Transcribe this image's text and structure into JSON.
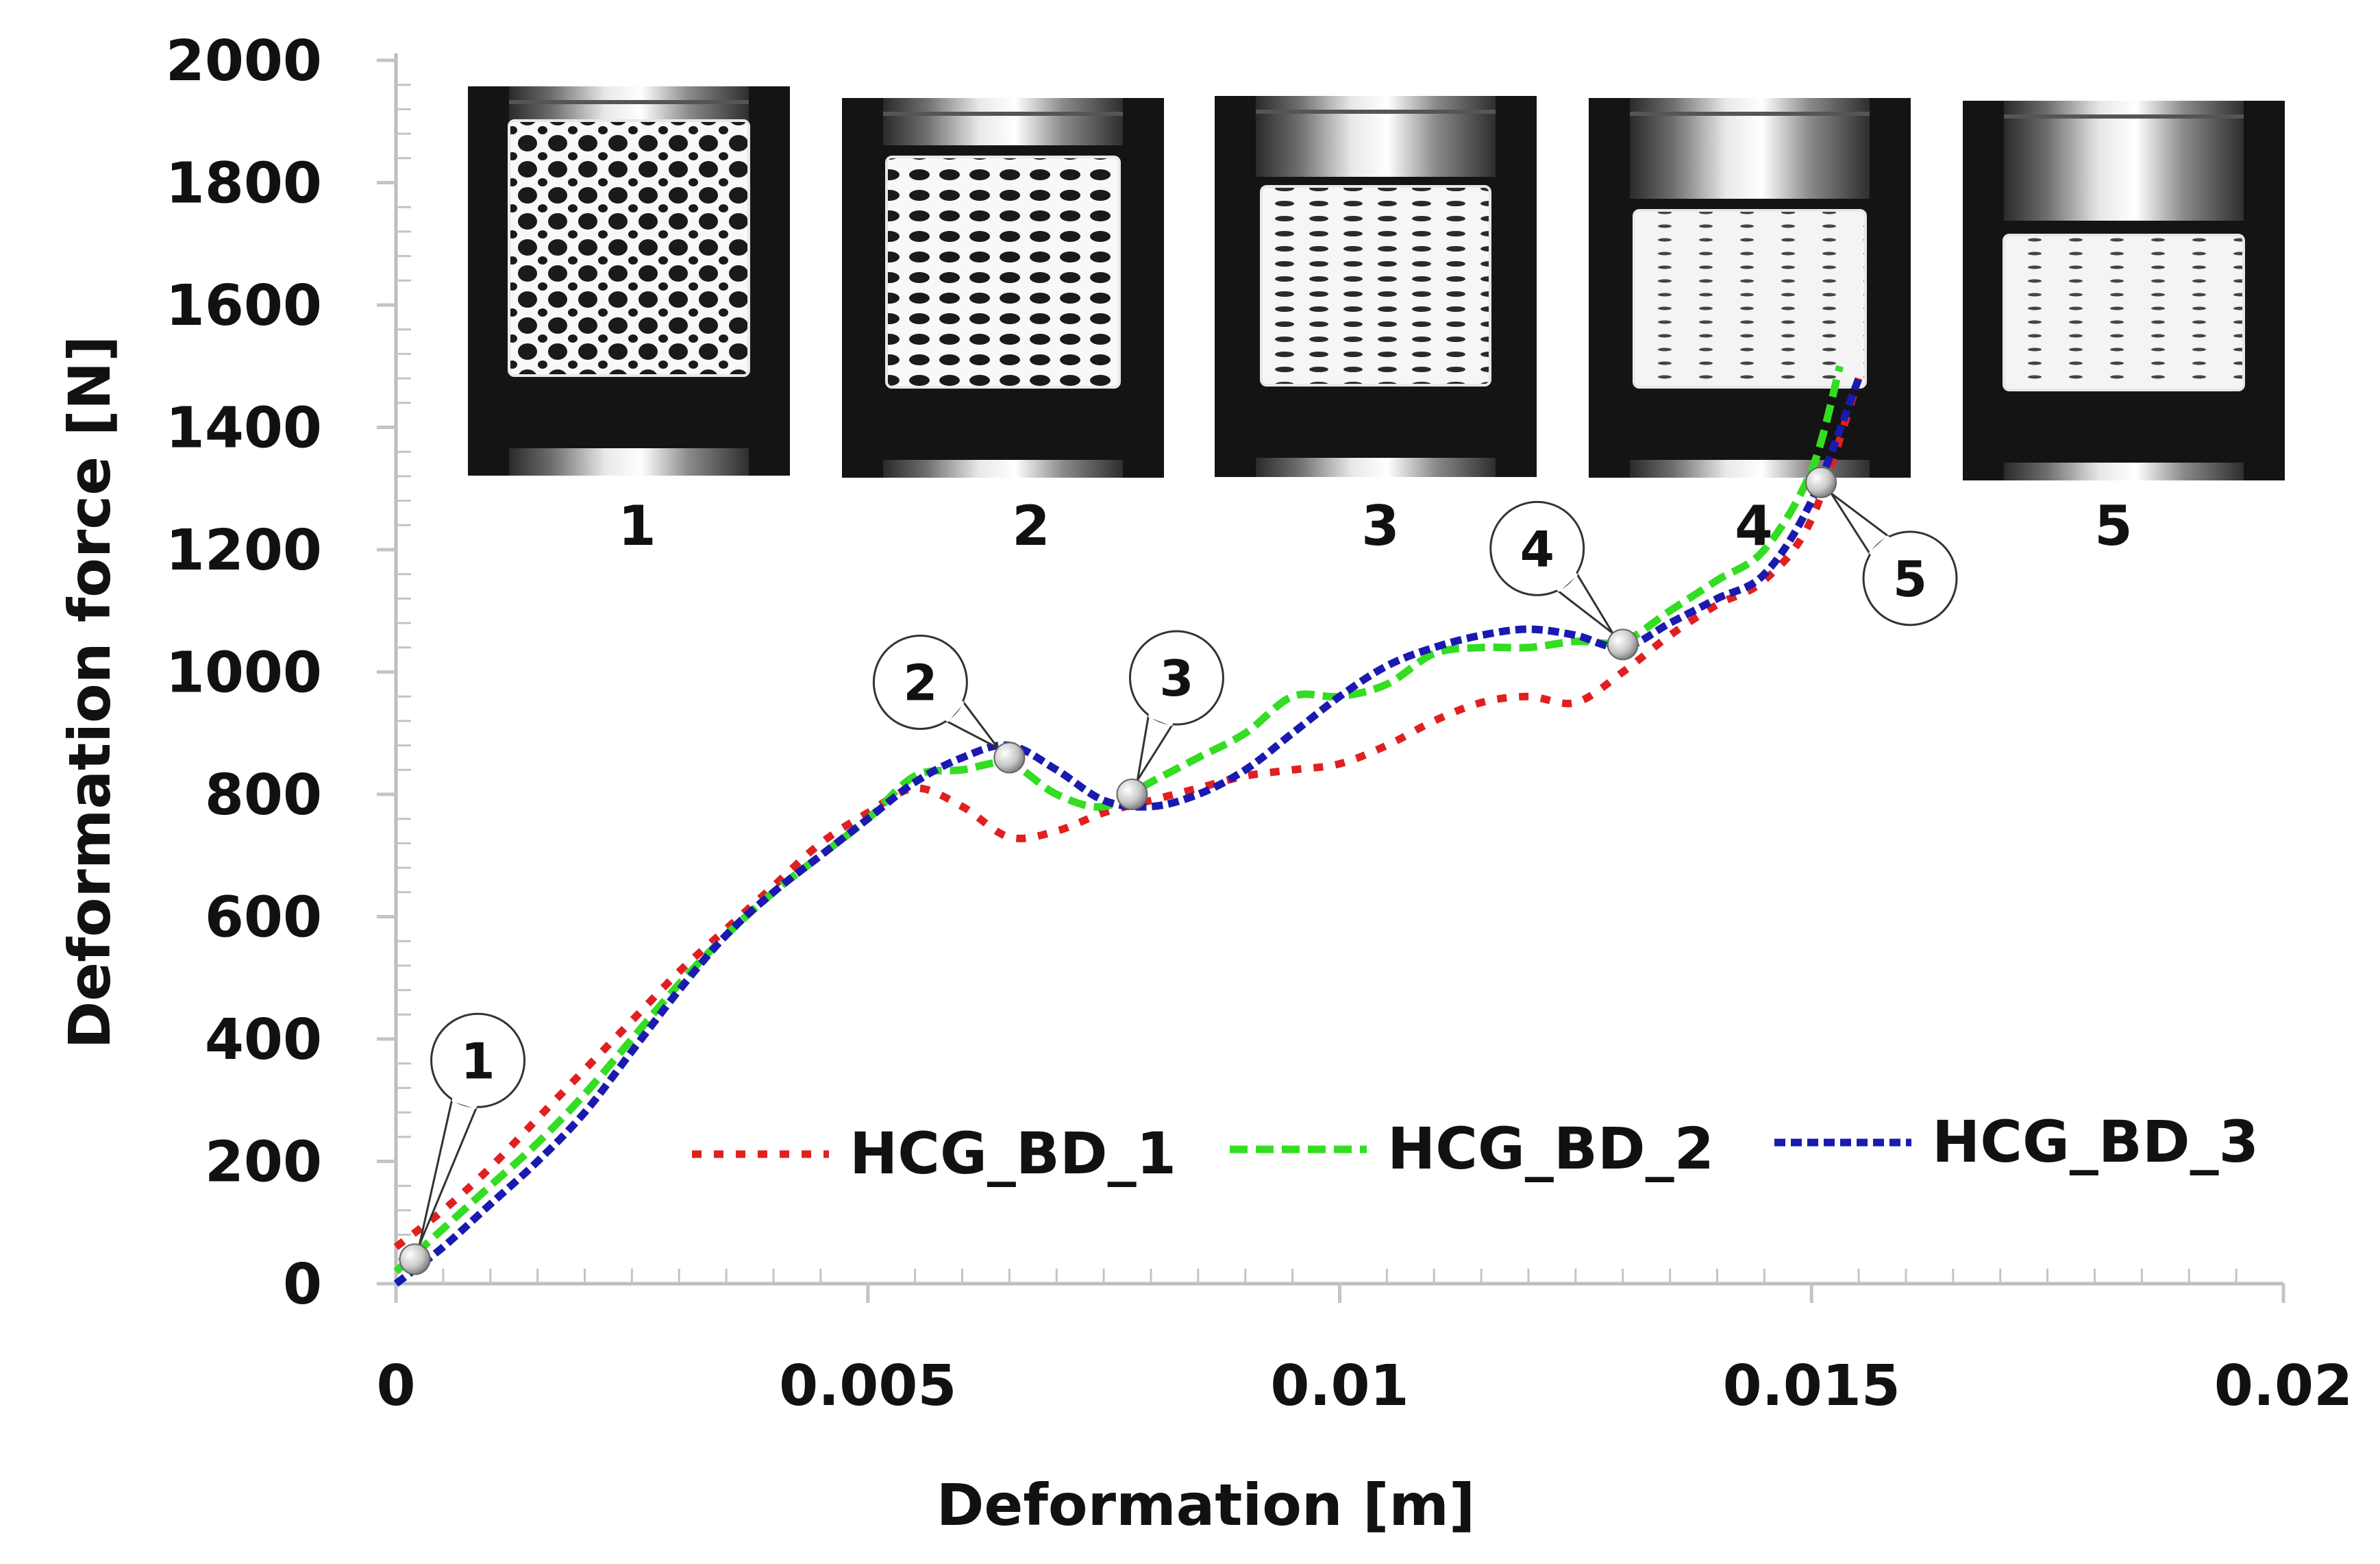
{
  "chart_data": {
    "type": "line",
    "xlabel": "Deformation [m]",
    "ylabel": "Deformation force [N]",
    "xlim": [
      0,
      0.02
    ],
    "ylim": [
      0,
      2000
    ],
    "x_ticks": [
      "0",
      "0.005",
      "0.01",
      "0.015",
      "0.02"
    ],
    "y_ticks": [
      "0",
      "200",
      "400",
      "600",
      "800",
      "1000",
      "1200",
      "1400",
      "1600",
      "1800",
      "2000"
    ],
    "grid": false,
    "legend_position": "center-right",
    "series": [
      {
        "name": "HCG_BD_1",
        "color": "#e02020",
        "x": [
          0,
          0.0005,
          0.001,
          0.0015,
          0.002,
          0.0025,
          0.003,
          0.0035,
          0.004,
          0.0045,
          0.005,
          0.0055,
          0.006,
          0.0065,
          0.007,
          0.0075,
          0.008,
          0.0085,
          0.009,
          0.0095,
          0.01,
          0.0105,
          0.011,
          0.0115,
          0.012,
          0.0125,
          0.013,
          0.0135,
          0.014,
          0.0145,
          0.015,
          0.0155
        ],
        "values": [
          60,
          120,
          190,
          270,
          350,
          430,
          510,
          580,
          650,
          720,
          770,
          810,
          780,
          730,
          740,
          770,
          790,
          810,
          830,
          840,
          850,
          880,
          920,
          950,
          960,
          950,
          1000,
          1060,
          1110,
          1150,
          1250,
          1480
        ]
      },
      {
        "name": "HCG_BD_2",
        "color": "#33dd22",
        "x": [
          0,
          0.0005,
          0.001,
          0.0015,
          0.002,
          0.0025,
          0.003,
          0.0035,
          0.004,
          0.0045,
          0.005,
          0.0055,
          0.006,
          0.0065,
          0.007,
          0.0075,
          0.008,
          0.0085,
          0.009,
          0.0095,
          0.01,
          0.0105,
          0.011,
          0.0115,
          0.012,
          0.0125,
          0.013,
          0.0135,
          0.014,
          0.0145,
          0.015,
          0.0153
        ],
        "values": [
          20,
          90,
          160,
          230,
          310,
          400,
          490,
          570,
          640,
          700,
          760,
          830,
          840,
          850,
          800,
          780,
          820,
          860,
          900,
          960,
          960,
          980,
          1030,
          1040,
          1040,
          1050,
          1050,
          1100,
          1150,
          1200,
          1330,
          1500
        ]
      },
      {
        "name": "HCG_BD_3",
        "color": "#1a1ab0",
        "x": [
          0,
          0.0005,
          0.001,
          0.0015,
          0.002,
          0.0025,
          0.003,
          0.0035,
          0.004,
          0.0045,
          0.005,
          0.0055,
          0.006,
          0.0065,
          0.007,
          0.0075,
          0.008,
          0.0085,
          0.009,
          0.0095,
          0.01,
          0.0105,
          0.011,
          0.0115,
          0.012,
          0.0125,
          0.013,
          0.0135,
          0.014,
          0.0145,
          0.015,
          0.0155
        ],
        "values": [
          0,
          60,
          130,
          200,
          280,
          380,
          480,
          570,
          640,
          700,
          760,
          820,
          860,
          880,
          840,
          790,
          780,
          800,
          840,
          900,
          960,
          1010,
          1040,
          1060,
          1070,
          1060,
          1040,
          1080,
          1120,
          1160,
          1280,
          1480
        ]
      }
    ],
    "callouts": [
      {
        "label": "1",
        "x": 0.0002,
        "y": 40
      },
      {
        "label": "2",
        "x": 0.0065,
        "y": 860
      },
      {
        "label": "3",
        "x": 0.0078,
        "y": 800
      },
      {
        "label": "4",
        "x": 0.013,
        "y": 1045
      },
      {
        "label": "5",
        "x": 0.0151,
        "y": 1310
      }
    ],
    "photo_labels": [
      "1",
      "2",
      "3",
      "4",
      "5"
    ]
  }
}
